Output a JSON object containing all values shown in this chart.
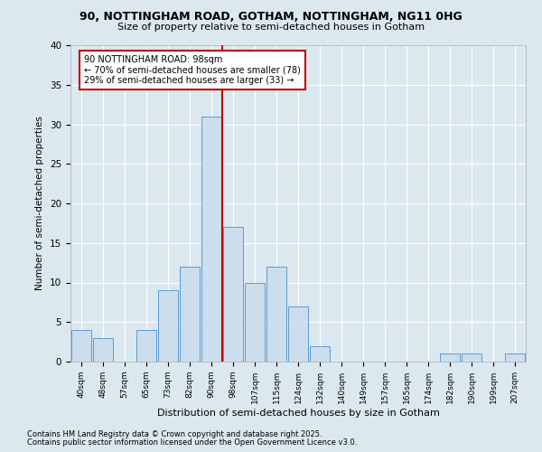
{
  "title1": "90, NOTTINGHAM ROAD, GOTHAM, NOTTINGHAM, NG11 0HG",
  "title2": "Size of property relative to semi-detached houses in Gotham",
  "xlabel": "Distribution of semi-detached houses by size in Gotham",
  "ylabel": "Number of semi-detached properties",
  "footnote1": "Contains HM Land Registry data © Crown copyright and database right 2025.",
  "footnote2": "Contains public sector information licensed under the Open Government Licence v3.0.",
  "categories": [
    "40sqm",
    "48sqm",
    "57sqm",
    "65sqm",
    "73sqm",
    "82sqm",
    "90sqm",
    "98sqm",
    "107sqm",
    "115sqm",
    "124sqm",
    "132sqm",
    "140sqm",
    "149sqm",
    "157sqm",
    "165sqm",
    "174sqm",
    "182sqm",
    "190sqm",
    "199sqm",
    "207sqm"
  ],
  "values": [
    4,
    3,
    0,
    4,
    9,
    12,
    31,
    17,
    10,
    12,
    7,
    2,
    0,
    0,
    0,
    0,
    0,
    1,
    1,
    0,
    1
  ],
  "bar_color": "#ccdded",
  "bar_edge_color": "#5b9bd5",
  "highlight_line_color": "#c00000",
  "annotation_title": "90 NOTTINGHAM ROAD: 98sqm",
  "annotation_line1": "← 70% of semi-detached houses are smaller (78)",
  "annotation_line2": "29% of semi-detached houses are larger (33) →",
  "annotation_box_color": "#c00000",
  "ylim": [
    0,
    40
  ],
  "yticks": [
    0,
    5,
    10,
    15,
    20,
    25,
    30,
    35,
    40
  ],
  "fig_bg_color": "#dce8f0",
  "plot_bg_color": "#dce8f0",
  "grid_color": "#ffffff"
}
